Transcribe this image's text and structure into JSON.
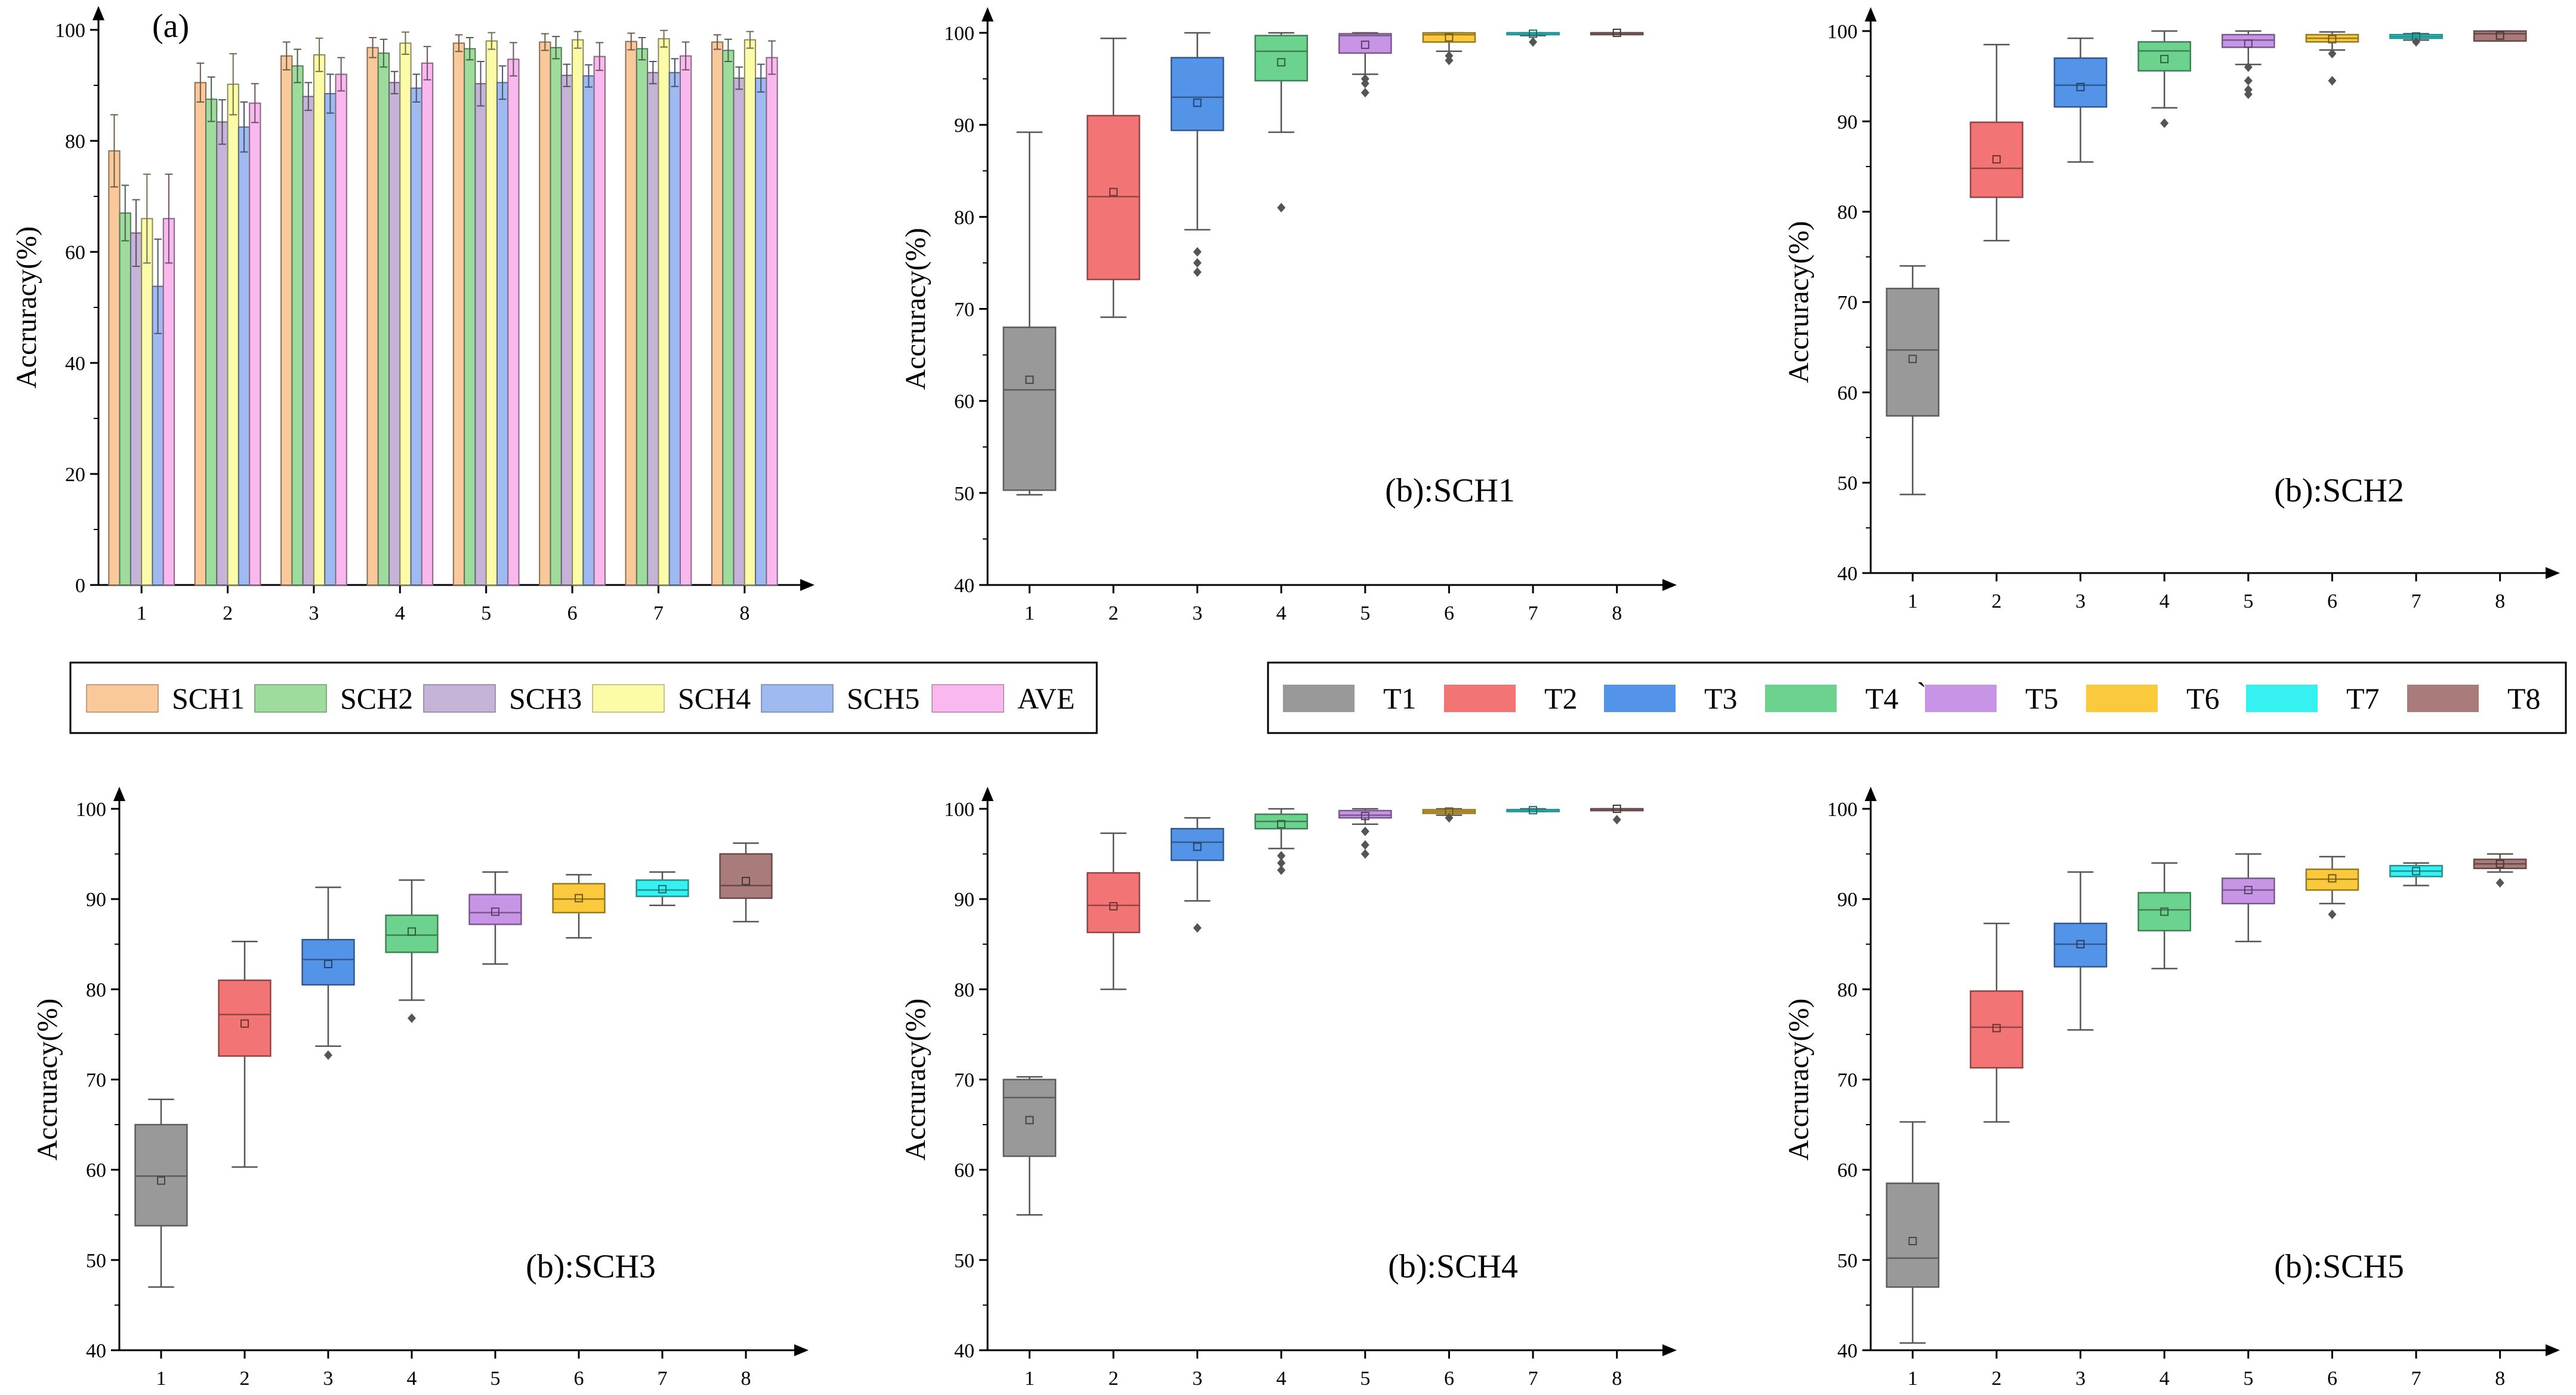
{
  "chart_data": [
    {
      "id": "a",
      "type": "bar",
      "panel_label": "(a)",
      "ylabel": "Accruracy(%)",
      "ylim": [
        0,
        100
      ],
      "yticks": [
        0,
        20,
        40,
        60,
        80,
        100
      ],
      "categories": [
        "1",
        "2",
        "3",
        "4",
        "5",
        "6",
        "7",
        "8"
      ],
      "series": [
        {
          "name": "SCH1",
          "color": "#f9c89b",
          "values": [
            78.2,
            90.5,
            95.3,
            96.8,
            97.6,
            97.8,
            97.9,
            97.8
          ],
          "errors": [
            6.5,
            3.5,
            2.5,
            1.8,
            1.5,
            1.5,
            1.5,
            1.3
          ]
        },
        {
          "name": "SCH2",
          "color": "#9edc9d",
          "values": [
            67.0,
            87.5,
            93.5,
            95.8,
            96.6,
            96.8,
            96.6,
            96.3
          ],
          "errors": [
            5.0,
            4.0,
            3.0,
            2.5,
            2.0,
            2.0,
            2.0,
            2.0
          ]
        },
        {
          "name": "SCH3",
          "color": "#c5b3d8",
          "values": [
            63.4,
            83.4,
            88.0,
            90.5,
            90.3,
            91.8,
            92.3,
            91.3
          ],
          "errors": [
            6.0,
            4.0,
            2.5,
            2.0,
            4.0,
            2.0,
            2.0,
            2.0
          ]
        },
        {
          "name": "SCH4",
          "color": "#fbfba8",
          "values": [
            66.0,
            90.2,
            95.5,
            97.6,
            98.0,
            98.2,
            98.4,
            98.2
          ],
          "errors": [
            8.0,
            5.5,
            3.0,
            2.0,
            1.5,
            1.5,
            1.5,
            1.5
          ]
        },
        {
          "name": "SCH5",
          "color": "#9fbaf0",
          "values": [
            53.8,
            82.5,
            88.5,
            89.5,
            90.5,
            91.7,
            92.3,
            91.3
          ],
          "errors": [
            8.5,
            4.5,
            3.5,
            2.5,
            3.0,
            2.0,
            2.5,
            2.5
          ]
        },
        {
          "name": "AVE",
          "color": "#f9b9ee",
          "values": [
            66.0,
            86.8,
            92.0,
            94.0,
            94.7,
            95.2,
            95.3,
            95.0
          ],
          "errors": [
            8.0,
            3.5,
            3.0,
            3.0,
            3.0,
            2.5,
            2.5,
            3.0
          ]
        }
      ]
    },
    {
      "id": "b-sch1",
      "type": "box",
      "panel_label": "(b):SCH1",
      "ylabel": "Accruracy(%)",
      "ylim": [
        40,
        100
      ],
      "yticks": [
        40,
        50,
        60,
        70,
        80,
        90,
        100
      ],
      "categories": [
        "1",
        "2",
        "3",
        "4",
        "5",
        "6",
        "7",
        "8"
      ],
      "boxes": [
        {
          "min": 49.8,
          "q1": 50.3,
          "median": 61.2,
          "q3": 68.0,
          "max": 89.2,
          "mean": 62.3,
          "outliers": []
        },
        {
          "min": 69.1,
          "q1": 73.2,
          "median": 82.2,
          "q3": 91.0,
          "max": 99.4,
          "mean": 82.7,
          "outliers": []
        },
        {
          "min": 78.6,
          "q1": 89.4,
          "median": 93.0,
          "q3": 97.3,
          "max": 100.0,
          "mean": 92.4,
          "outliers": [
            74.0,
            75.0,
            76.2
          ]
        },
        {
          "min": 89.2,
          "q1": 94.8,
          "median": 98.0,
          "q3": 99.7,
          "max": 100.0,
          "mean": 96.8,
          "outliers": [
            81.0
          ]
        },
        {
          "min": 95.5,
          "q1": 97.8,
          "median": 99.7,
          "q3": 99.9,
          "max": 100.0,
          "mean": 98.7,
          "outliers": [
            93.5,
            94.5,
            95.0
          ]
        },
        {
          "min": 98.0,
          "q1": 99.0,
          "median": 99.8,
          "q3": 100.0,
          "max": 100.0,
          "mean": 99.5,
          "outliers": [
            97.0,
            97.5
          ]
        },
        {
          "min": 99.7,
          "q1": 99.9,
          "median": 100.0,
          "q3": 100.0,
          "max": 100.0,
          "mean": 99.9,
          "outliers": [
            99.0
          ]
        },
        {
          "min": 99.9,
          "q1": 100.0,
          "median": 100.0,
          "q3": 100.0,
          "max": 100.0,
          "mean": 100.0,
          "outliers": []
        }
      ]
    },
    {
      "id": "b-sch2",
      "type": "box",
      "panel_label": "(b):SCH2",
      "ylabel": "Accruracy(%)",
      "ylim": [
        40,
        100
      ],
      "yticks": [
        40,
        50,
        60,
        70,
        80,
        90,
        100
      ],
      "categories": [
        "1",
        "2",
        "3",
        "4",
        "5",
        "6",
        "7",
        "8"
      ],
      "boxes": [
        {
          "min": 48.7,
          "q1": 57.4,
          "median": 64.7,
          "q3": 71.5,
          "max": 74.0,
          "mean": 63.7,
          "outliers": []
        },
        {
          "min": 76.8,
          "q1": 81.6,
          "median": 84.8,
          "q3": 89.9,
          "max": 98.5,
          "mean": 85.8,
          "outliers": []
        },
        {
          "min": 85.5,
          "q1": 91.6,
          "median": 94.0,
          "q3": 97.0,
          "max": 99.2,
          "mean": 93.8,
          "outliers": []
        },
        {
          "min": 91.5,
          "q1": 95.6,
          "median": 97.8,
          "q3": 98.8,
          "max": 100.0,
          "mean": 96.9,
          "outliers": [
            89.8
          ]
        },
        {
          "min": 96.3,
          "q1": 98.2,
          "median": 99.0,
          "q3": 99.6,
          "max": 100.0,
          "mean": 98.6,
          "outliers": [
            93.0,
            93.5,
            94.5,
            96.0
          ]
        },
        {
          "min": 97.9,
          "q1": 98.8,
          "median": 99.2,
          "q3": 99.6,
          "max": 99.9,
          "mean": 99.1,
          "outliers": [
            94.5,
            97.5
          ]
        },
        {
          "min": 99.0,
          "q1": 99.2,
          "median": 99.4,
          "q3": 99.6,
          "max": 99.7,
          "mean": 99.4,
          "outliers": [
            98.8
          ]
        },
        {
          "min": 98.9,
          "q1": 98.9,
          "median": 99.7,
          "q3": 100.0,
          "max": 100.0,
          "mean": 99.5,
          "outliers": []
        }
      ]
    },
    {
      "id": "b-sch3",
      "type": "box",
      "panel_label": "(b):SCH3",
      "ylabel": "Accruracy(%)",
      "ylim": [
        40,
        100
      ],
      "yticks": [
        40,
        50,
        60,
        70,
        80,
        90,
        100
      ],
      "categories": [
        "1",
        "2",
        "3",
        "4",
        "5",
        "6",
        "7",
        "8"
      ],
      "boxes": [
        {
          "min": 47.0,
          "q1": 53.8,
          "median": 59.3,
          "q3": 65.0,
          "max": 67.8,
          "mean": 58.8,
          "outliers": []
        },
        {
          "min": 60.3,
          "q1": 72.6,
          "median": 77.2,
          "q3": 81.0,
          "max": 85.3,
          "mean": 76.2,
          "outliers": []
        },
        {
          "min": 73.7,
          "q1": 80.5,
          "median": 83.3,
          "q3": 85.5,
          "max": 91.3,
          "mean": 82.8,
          "outliers": [
            72.7
          ]
        },
        {
          "min": 78.8,
          "q1": 84.1,
          "median": 86.0,
          "q3": 88.2,
          "max": 92.1,
          "mean": 86.4,
          "outliers": [
            76.8
          ]
        },
        {
          "min": 82.8,
          "q1": 87.2,
          "median": 88.5,
          "q3": 90.5,
          "max": 93.0,
          "mean": 88.6,
          "outliers": []
        },
        {
          "min": 85.7,
          "q1": 88.5,
          "median": 90.0,
          "q3": 91.7,
          "max": 92.7,
          "mean": 90.1,
          "outliers": []
        },
        {
          "min": 89.3,
          "q1": 90.3,
          "median": 91.0,
          "q3": 92.1,
          "max": 93.0,
          "mean": 91.1,
          "outliers": []
        },
        {
          "min": 87.5,
          "q1": 90.1,
          "median": 91.5,
          "q3": 95.0,
          "max": 96.2,
          "mean": 92.0,
          "outliers": []
        }
      ]
    },
    {
      "id": "b-sch4",
      "type": "box",
      "panel_label": "(b):SCH4",
      "ylabel": "Accruracy(%)",
      "ylim": [
        40,
        100
      ],
      "yticks": [
        40,
        50,
        60,
        70,
        80,
        90,
        100
      ],
      "categories": [
        "1",
        "2",
        "3",
        "4",
        "5",
        "6",
        "7",
        "8"
      ],
      "boxes": [
        {
          "min": 55.0,
          "q1": 61.5,
          "median": 68.0,
          "q3": 70.0,
          "max": 70.3,
          "mean": 65.5,
          "outliers": []
        },
        {
          "min": 80.0,
          "q1": 86.3,
          "median": 89.3,
          "q3": 92.9,
          "max": 97.3,
          "mean": 89.2,
          "outliers": []
        },
        {
          "min": 89.8,
          "q1": 94.3,
          "median": 96.3,
          "q3": 97.8,
          "max": 99.0,
          "mean": 95.8,
          "outliers": [
            86.8
          ]
        },
        {
          "min": 95.6,
          "q1": 97.8,
          "median": 98.6,
          "q3": 99.4,
          "max": 100.0,
          "mean": 98.3,
          "outliers": [
            93.2,
            94.0,
            94.8
          ]
        },
        {
          "min": 98.3,
          "q1": 99.0,
          "median": 99.3,
          "q3": 99.8,
          "max": 100.0,
          "mean": 99.2,
          "outliers": [
            95.0,
            96.0,
            97.5
          ]
        },
        {
          "min": 99.3,
          "q1": 99.5,
          "median": 99.7,
          "q3": 99.9,
          "max": 100.0,
          "mean": 99.7,
          "outliers": [
            99.0
          ]
        },
        {
          "min": 99.7,
          "q1": 99.8,
          "median": 99.9,
          "q3": 99.9,
          "max": 100.0,
          "mean": 99.85,
          "outliers": []
        },
        {
          "min": 99.9,
          "q1": 100.0,
          "median": 100.0,
          "q3": 100.0,
          "max": 100.0,
          "mean": 100.0,
          "outliers": [
            98.8
          ]
        }
      ]
    },
    {
      "id": "b-sch5",
      "type": "box",
      "panel_label": "(b):SCH5",
      "ylabel": "Accruracy(%)",
      "ylim": [
        40,
        100
      ],
      "yticks": [
        40,
        50,
        60,
        70,
        80,
        90,
        100
      ],
      "categories": [
        "1",
        "2",
        "3",
        "4",
        "5",
        "6",
        "7",
        "8"
      ],
      "boxes": [
        {
          "min": 40.8,
          "q1": 47.0,
          "median": 50.2,
          "q3": 58.5,
          "max": 65.3,
          "mean": 52.1,
          "outliers": []
        },
        {
          "min": 65.3,
          "q1": 71.3,
          "median": 75.8,
          "q3": 79.8,
          "max": 87.3,
          "mean": 75.7,
          "outliers": []
        },
        {
          "min": 75.5,
          "q1": 82.5,
          "median": 85.0,
          "q3": 87.3,
          "max": 93.0,
          "mean": 85.0,
          "outliers": []
        },
        {
          "min": 82.3,
          "q1": 86.5,
          "median": 88.8,
          "q3": 90.7,
          "max": 94.0,
          "mean": 88.6,
          "outliers": []
        },
        {
          "min": 85.3,
          "q1": 89.5,
          "median": 91.0,
          "q3": 92.3,
          "max": 95.0,
          "mean": 91.0,
          "outliers": []
        },
        {
          "min": 89.5,
          "q1": 91.0,
          "median": 92.2,
          "q3": 93.3,
          "max": 94.7,
          "mean": 92.3,
          "outliers": [
            88.3
          ]
        },
        {
          "min": 91.5,
          "q1": 92.5,
          "median": 93.1,
          "q3": 93.7,
          "max": 94.0,
          "mean": 93.1,
          "outliers": []
        },
        {
          "min": 93.0,
          "q1": 93.4,
          "median": 93.9,
          "q3": 94.4,
          "max": 95.0,
          "mean": 93.9,
          "outliers": [
            91.8
          ]
        }
      ]
    }
  ],
  "legends": {
    "schemes": [
      {
        "label": "SCH1",
        "color": "#f9c89b"
      },
      {
        "label": "SCH2",
        "color": "#9edc9d"
      },
      {
        "label": "SCH3",
        "color": "#c5b3d8"
      },
      {
        "label": "SCH4",
        "color": "#fbfba8"
      },
      {
        "label": "SCH5",
        "color": "#9fbaf0"
      },
      {
        "label": "AVE",
        "color": "#f9b9ee"
      }
    ],
    "tasks": [
      {
        "label": "T1",
        "color": "#999999"
      },
      {
        "label": "T2",
        "color": "#f27474"
      },
      {
        "label": "T3",
        "color": "#5394e9"
      },
      {
        "label": "T4",
        "color": "#6cd38f"
      },
      {
        "label": "T5",
        "color": "#c895e6"
      },
      {
        "label": "T6",
        "color": "#fbc93c"
      },
      {
        "label": "T7",
        "color": "#36f1f1"
      },
      {
        "label": "T8",
        "color": "#a97b7a"
      }
    ],
    "stray_mark": "`"
  }
}
